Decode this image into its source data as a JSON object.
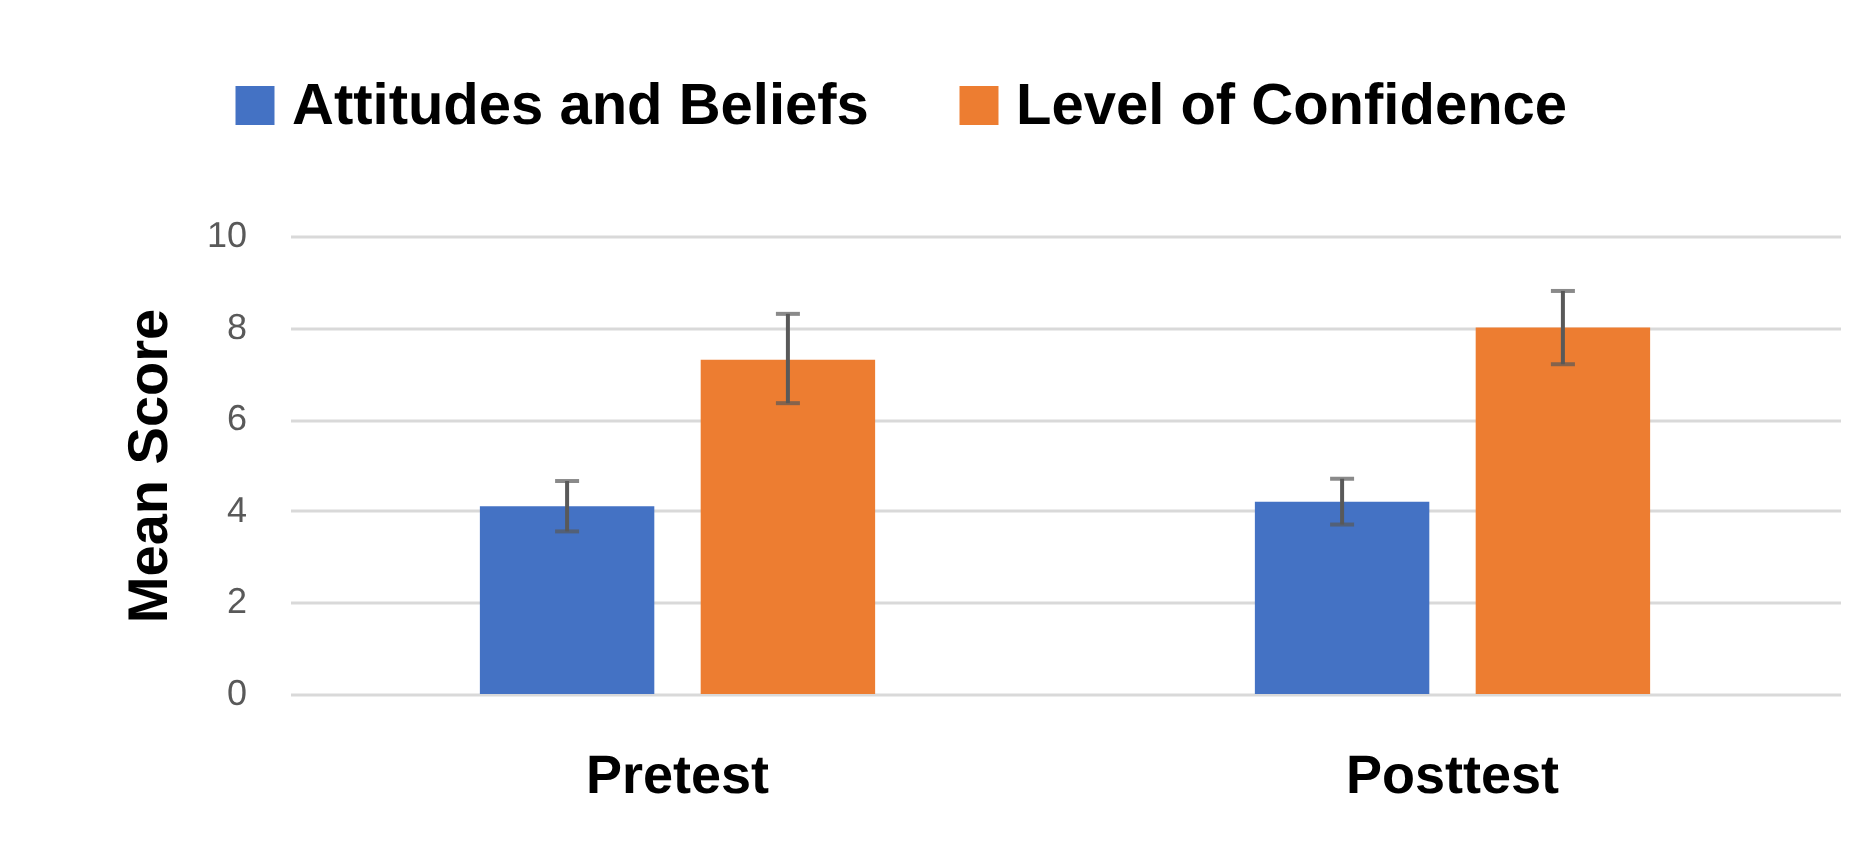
{
  "chart_data": {
    "type": "bar",
    "ylabel": "Mean Score",
    "categories": [
      "Pretest",
      "Posttest"
    ],
    "series": [
      {
        "name": "Attitudes and Beliefs",
        "color": "#4472c4",
        "values": [
          4.1,
          4.2
        ],
        "errors": [
          [
            3.55,
            4.65
          ],
          [
            3.7,
            4.7
          ]
        ]
      },
      {
        "name": "Level of Confidence",
        "color": "#ed7d31",
        "values": [
          7.3,
          8.0
        ],
        "errors": [
          [
            6.35,
            8.3
          ],
          [
            7.2,
            8.8
          ]
        ]
      }
    ],
    "ylim": [
      0,
      10
    ],
    "yticks": [
      0,
      2,
      4,
      6,
      8,
      10
    ],
    "grid": "y",
    "legend": "top"
  }
}
